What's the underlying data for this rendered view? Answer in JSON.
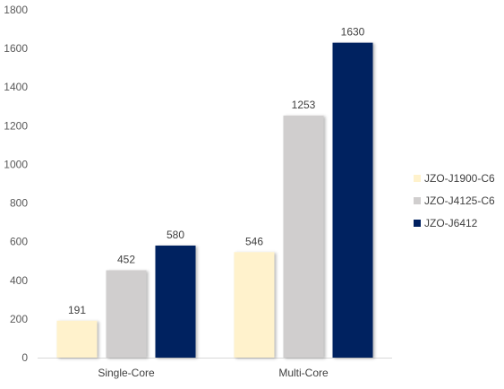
{
  "chart_data": {
    "type": "bar",
    "categories": [
      "Single-Core",
      "Multi-Core"
    ],
    "series": [
      {
        "name": "JZO-J1900-C6",
        "color": "#fff2cc",
        "values": [
          191,
          546
        ]
      },
      {
        "name": "JZO-J4125-C6",
        "color": "#d0cece",
        "values": [
          452,
          1253
        ]
      },
      {
        "name": "JZO-J6412",
        "color": "#002060",
        "values": [
          580,
          1630
        ]
      }
    ],
    "title": "",
    "xlabel": "",
    "ylabel": "",
    "ylim": [
      0,
      1800
    ],
    "yticks": [
      0,
      200,
      400,
      600,
      800,
      1000,
      1200,
      1400,
      1600,
      1800
    ],
    "grid": false,
    "legend": "right"
  }
}
